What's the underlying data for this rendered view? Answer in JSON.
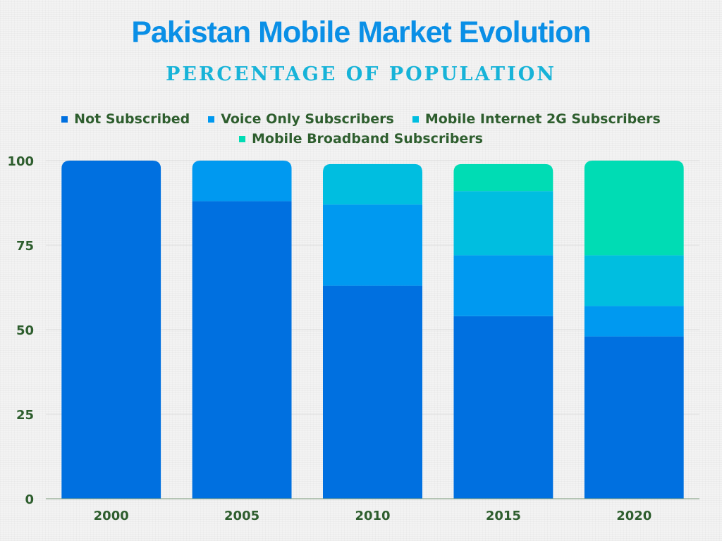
{
  "chart_data": {
    "type": "bar",
    "stacked": true,
    "title": "Pakistan Mobile Market Evolution",
    "subtitle": "PERCENTAGE OF POPULATION",
    "categories": [
      "2000",
      "2005",
      "2010",
      "2015",
      "2020"
    ],
    "series": [
      {
        "name": "Not Subscribed",
        "color": "#0070e0",
        "values": [
          100,
          88,
          63,
          54,
          48
        ]
      },
      {
        "name": "Voice Only Subscribers",
        "color": "#0099f0",
        "values": [
          0,
          12,
          24,
          18,
          9
        ]
      },
      {
        "name": "Mobile Internet 2G Subscribers",
        "color": "#00bee0",
        "values": [
          0,
          0,
          12,
          19,
          15
        ]
      },
      {
        "name": "Mobile Broadband Subscribers",
        "color": "#00dcb4",
        "values": [
          0,
          0,
          0,
          8,
          28
        ]
      }
    ],
    "y_ticks": [
      "0",
      "25",
      "50",
      "75",
      "100"
    ],
    "ylim": [
      0,
      100
    ],
    "grid": true,
    "legend_position": "top"
  }
}
